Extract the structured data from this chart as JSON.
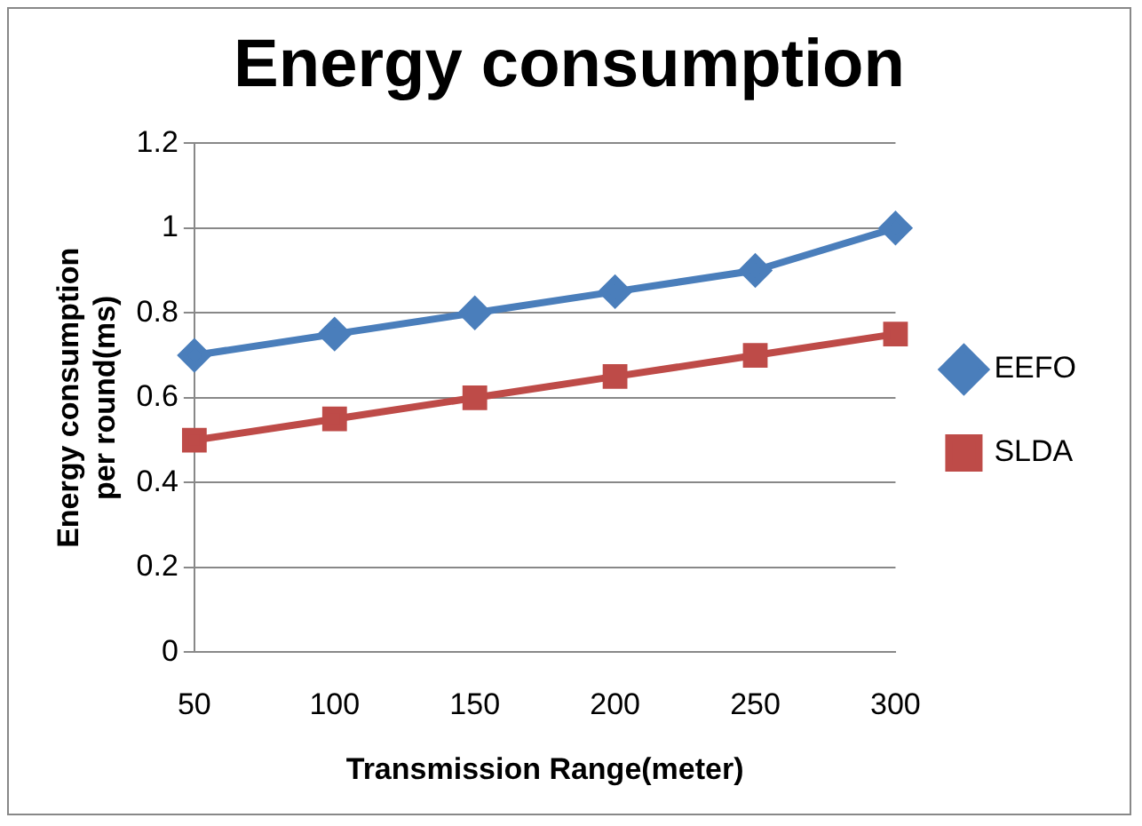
{
  "chart_data": {
    "type": "line",
    "title": "Energy consumption",
    "xlabel": "Transmission Range(meter)",
    "ylabel": "Energy consumption per round(ms)",
    "categories": [
      "50",
      "100",
      "150",
      "200",
      "250",
      "300"
    ],
    "series": [
      {
        "name": "EEFO",
        "color": "#4a7ebb",
        "marker": "diamond",
        "values": [
          0.7,
          0.75,
          0.8,
          0.85,
          0.9,
          1.0
        ]
      },
      {
        "name": "SLDA",
        "color": "#be4b48",
        "marker": "square",
        "values": [
          0.5,
          0.55,
          0.6,
          0.65,
          0.7,
          0.75
        ]
      }
    ],
    "ylim": [
      0,
      1.2
    ],
    "yticks": [
      0,
      0.2,
      0.4,
      0.6,
      0.8,
      1,
      1.2
    ],
    "grid": "y",
    "legend": "right",
    "line_style": "solid"
  }
}
